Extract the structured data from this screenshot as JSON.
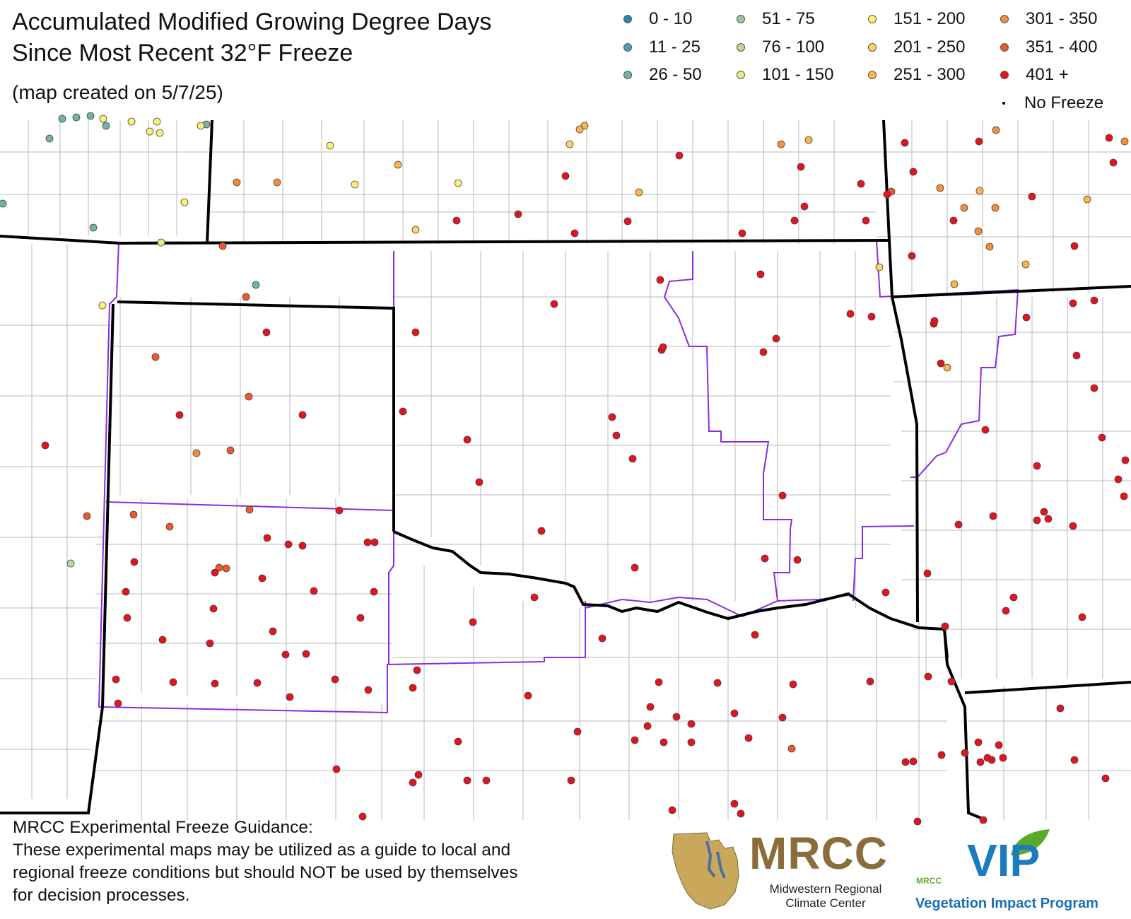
{
  "title": {
    "line1": "Accumulated Modified Growing Degree Days",
    "line2": "Since Most Recent 32°F Freeze",
    "created": "(map created on 5/7/25)"
  },
  "legend": [
    {
      "label": "0 - 10",
      "color": "#2b83ba"
    },
    {
      "label": "11 - 25",
      "color": "#4e9fb5"
    },
    {
      "label": "26 - 50",
      "color": "#72b3a8"
    },
    {
      "label": "51 - 75",
      "color": "#97c79e"
    },
    {
      "label": "76 - 100",
      "color": "#bbdc94"
    },
    {
      "label": "101 - 150",
      "color": "#def08b"
    },
    {
      "label": "151 - 200",
      "color": "#fbf274"
    },
    {
      "label": "201 - 250",
      "color": "#fdd45e"
    },
    {
      "label": "251 - 300",
      "color": "#fdb548"
    },
    {
      "label": "301 - 350",
      "color": "#f68d3a"
    },
    {
      "label": "351 - 400",
      "color": "#e95a2c"
    },
    {
      "label": "401 +",
      "color": "#e6121c"
    },
    {
      "label": "No Freeze",
      "color": "#000000"
    }
  ],
  "disclaimer": {
    "lines": [
      "MRCC Experimental Freeze Guidance:",
      "These experimental maps may be utilized as a guide to local and",
      "regional freeze conditions but should NOT be used by themselves",
      "for decision processes."
    ]
  },
  "logos": {
    "mrcc": {
      "big": "MRCC",
      "sub": "Midwestern Regional Climate Center"
    },
    "vip": {
      "big": "VIP",
      "small": "MRCC",
      "sub": "Vegetation Impact Program"
    }
  },
  "stations": {
    "cat0": [],
    "cat1": [],
    "cat2": [
      [
        70,
        196
      ],
      [
        88,
        168
      ],
      [
        108,
        166
      ],
      [
        128,
        164
      ],
      [
        150,
        178
      ],
      [
        132,
        322
      ],
      [
        362,
        403
      ],
      [
        292,
        176
      ],
      [
        4,
        288
      ]
    ],
    "cat3": [],
    "cat4": [
      [
        100,
        797
      ]
    ],
    "cat5": [
      [
        228,
        343
      ]
    ],
    "cat6": [
      [
        146,
        168
      ],
      [
        186,
        172
      ],
      [
        212,
        186
      ],
      [
        226,
        188
      ],
      [
        222,
        172
      ],
      [
        284,
        178
      ],
      [
        261,
        286
      ],
      [
        145,
        432
      ],
      [
        467,
        206
      ],
      [
        502,
        261
      ],
      [
        648,
        259
      ]
    ],
    "cat7": [
      [
        588,
        325
      ],
      [
        806,
        204
      ],
      [
        1244,
        378
      ]
    ],
    "cat8": [
      [
        563,
        233
      ],
      [
        827,
        178
      ],
      [
        820,
        183
      ],
      [
        904,
        272
      ],
      [
        1144,
        198
      ],
      [
        1350,
        402
      ],
      [
        1386,
        270
      ],
      [
        1451,
        374
      ],
      [
        1538,
        282
      ],
      [
        1340,
        520
      ]
    ],
    "cat9": [
      [
        335,
        258
      ],
      [
        392,
        258
      ],
      [
        1105,
        204
      ],
      [
        1409,
        184
      ],
      [
        1408,
        294
      ],
      [
        1591,
        200
      ],
      [
        1384,
        327
      ],
      [
        1330,
        266
      ],
      [
        1400,
        349
      ],
      [
        1364,
        294
      ],
      [
        278,
        641
      ]
    ],
    "cat10": [
      [
        315,
        348
      ],
      [
        348,
        420
      ],
      [
        220,
        505
      ],
      [
        352,
        561
      ],
      [
        326,
        637
      ],
      [
        353,
        721
      ],
      [
        123,
        730
      ],
      [
        189,
        728
      ],
      [
        240,
        745
      ],
      [
        320,
        804
      ],
      [
        310,
        803
      ],
      [
        1261,
        271
      ],
      [
        1120,
        1059
      ]
    ],
    "cat11": [
      [
        646,
        312
      ],
      [
        733,
        303
      ],
      [
        800,
        249
      ],
      [
        813,
        330
      ],
      [
        888,
        313
      ],
      [
        961,
        220
      ],
      [
        1050,
        330
      ],
      [
        1124,
        312
      ],
      [
        1138,
        292
      ],
      [
        1133,
        236
      ],
      [
        1218,
        260
      ],
      [
        1225,
        312
      ],
      [
        1255,
        275
      ],
      [
        1280,
        202
      ],
      [
        1292,
        243
      ],
      [
        1349,
        312
      ],
      [
        1385,
        200
      ],
      [
        1460,
        278
      ],
      [
        1520,
        348
      ],
      [
        1290,
        362
      ],
      [
        1575,
        230
      ],
      [
        1569,
        195
      ],
      [
        377,
        470
      ],
      [
        254,
        587
      ],
      [
        428,
        587
      ],
      [
        64,
        630
      ],
      [
        588,
        470
      ],
      [
        570,
        582
      ],
      [
        661,
        622
      ],
      [
        678,
        682
      ],
      [
        766,
        751
      ],
      [
        784,
        430
      ],
      [
        866,
        590
      ],
      [
        872,
        616
      ],
      [
        895,
        649
      ],
      [
        934,
        396
      ],
      [
        936,
        495
      ],
      [
        938,
        491
      ],
      [
        1076,
        388
      ],
      [
        1098,
        479
      ],
      [
        1080,
        498
      ],
      [
        1203,
        444
      ],
      [
        1233,
        448
      ],
      [
        1321,
        458
      ],
      [
        1331,
        514
      ],
      [
        1322,
        454
      ],
      [
        1518,
        429
      ],
      [
        1548,
        425
      ],
      [
        1452,
        449
      ],
      [
        1523,
        503
      ],
      [
        1548,
        549
      ],
      [
        1467,
        659
      ],
      [
        1592,
        651
      ],
      [
        1582,
        678
      ],
      [
        1590,
        702
      ],
      [
        1559,
        619
      ],
      [
        1394,
        608
      ],
      [
        1405,
        730
      ],
      [
        1477,
        724
      ],
      [
        1483,
        734
      ],
      [
        1467,
        736
      ],
      [
        1518,
        744
      ],
      [
        1356,
        742
      ],
      [
        1312,
        811
      ],
      [
        1434,
        845
      ],
      [
        1423,
        864
      ],
      [
        1531,
        873
      ],
      [
        1253,
        838
      ],
      [
        1128,
        792
      ],
      [
        1107,
        701
      ],
      [
        1082,
        790
      ],
      [
        898,
        803
      ],
      [
        756,
        845
      ],
      [
        669,
        880
      ],
      [
        852,
        903
      ],
      [
        1068,
        898
      ],
      [
        480,
        722
      ],
      [
        520,
        767
      ],
      [
        530,
        767
      ],
      [
        428,
        772
      ],
      [
        408,
        770
      ],
      [
        444,
        836
      ],
      [
        529,
        837
      ],
      [
        510,
        874
      ],
      [
        371,
        818
      ],
      [
        378,
        761
      ],
      [
        190,
        795
      ],
      [
        178,
        837
      ],
      [
        180,
        874
      ],
      [
        230,
        905
      ],
      [
        304,
        810
      ],
      [
        302,
        861
      ],
      [
        297,
        910
      ],
      [
        386,
        893
      ],
      [
        404,
        926
      ],
      [
        433,
        925
      ],
      [
        245,
        965
      ],
      [
        304,
        967
      ],
      [
        364,
        966
      ],
      [
        410,
        986
      ],
      [
        474,
        961
      ],
      [
        521,
        976
      ],
      [
        584,
        973
      ],
      [
        590,
        948
      ],
      [
        747,
        984
      ],
      [
        932,
        965
      ],
      [
        1015,
        966
      ],
      [
        1122,
        968
      ],
      [
        1231,
        964
      ],
      [
        1346,
        964
      ],
      [
        1337,
        886
      ],
      [
        1313,
        957
      ],
      [
        978,
        1024
      ],
      [
        957,
        1014
      ],
      [
        916,
        1027
      ],
      [
        898,
        1047
      ],
      [
        939,
        1050
      ],
      [
        978,
        1050
      ],
      [
        1039,
        1009
      ],
      [
        1059,
        1044
      ],
      [
        1107,
        1015
      ],
      [
        817,
        1035
      ],
      [
        920,
        1000
      ],
      [
        648,
        1049
      ],
      [
        476,
        1088
      ],
      [
        592,
        1096
      ],
      [
        584,
        1107
      ],
      [
        661,
        1104
      ],
      [
        688,
        1104
      ],
      [
        808,
        1104
      ],
      [
        951,
        1146
      ],
      [
        1039,
        1137
      ],
      [
        1048,
        1151
      ],
      [
        1281,
        1078
      ],
      [
        1292,
        1077
      ],
      [
        1332,
        1068
      ],
      [
        1365,
        1065
      ],
      [
        1384,
        1050
      ],
      [
        1403,
        1075
      ],
      [
        1387,
        1078
      ],
      [
        1397,
        1072
      ],
      [
        1413,
        1054
      ],
      [
        1419,
        1072
      ],
      [
        1500,
        1002
      ],
      [
        1520,
        1075
      ],
      [
        1298,
        1162
      ],
      [
        1391,
        1160
      ],
      [
        1564,
        1101
      ],
      [
        513,
        1155
      ],
      [
        164,
        961
      ],
      [
        167,
        995
      ]
    ],
    "cat12": []
  }
}
